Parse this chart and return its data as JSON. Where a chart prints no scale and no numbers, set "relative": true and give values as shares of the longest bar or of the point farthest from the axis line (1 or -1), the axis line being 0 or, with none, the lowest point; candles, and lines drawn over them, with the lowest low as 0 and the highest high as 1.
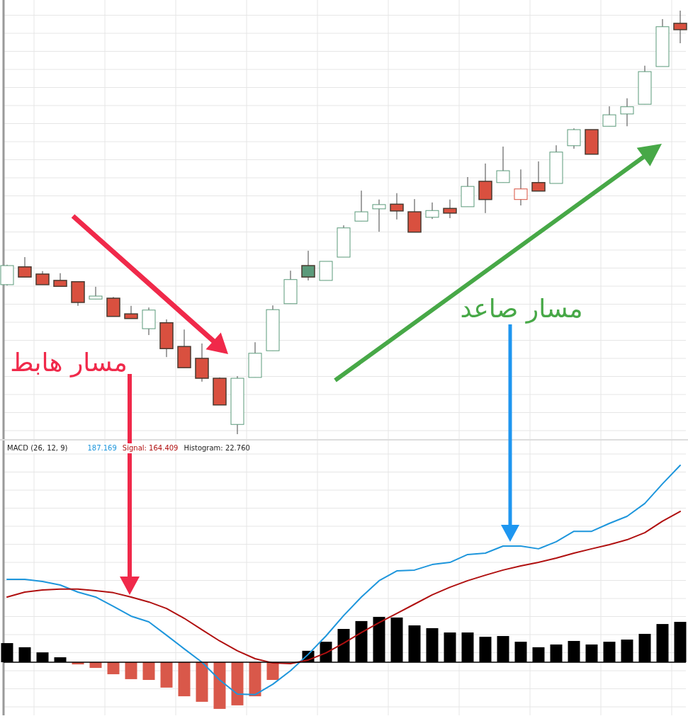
{
  "chart_data": [
    {
      "type": "candlestick",
      "relative": true,
      "grid": true,
      "categories": [
        null,
        null,
        null,
        null,
        null,
        null,
        null,
        null,
        null,
        null,
        null,
        null,
        null,
        null,
        null,
        null,
        null,
        null,
        null,
        null,
        null,
        null,
        null,
        null,
        null,
        null,
        null,
        null,
        null,
        null,
        null,
        null,
        null,
        null,
        null,
        null,
        null,
        null,
        null
      ],
      "ohlc": [
        [
          0.353,
          0.4,
          0.351,
          0.398
        ],
        [
          0.395,
          0.418,
          0.371,
          0.371
        ],
        [
          0.378,
          0.385,
          0.353,
          0.353
        ],
        [
          0.363,
          0.38,
          0.349,
          0.349
        ],
        [
          0.36,
          0.36,
          0.303,
          0.311
        ],
        [
          0.319,
          0.348,
          0.319,
          0.326
        ],
        [
          0.321,
          0.324,
          0.278,
          0.278
        ],
        [
          0.284,
          0.303,
          0.273,
          0.273
        ],
        [
          0.249,
          0.299,
          0.234,
          0.293
        ],
        [
          0.263,
          0.271,
          0.182,
          0.202
        ],
        [
          0.207,
          0.247,
          0.157,
          0.157
        ],
        [
          0.179,
          0.214,
          0.124,
          0.132
        ],
        [
          0.132,
          0.134,
          0.069,
          0.069
        ],
        [
          0.023,
          0.137,
          0,
          0.132
        ],
        [
          0.134,
          0.217,
          0.134,
          0.191
        ],
        [
          0.197,
          0.304,
          0.197,
          0.294
        ],
        [
          0.308,
          0.386,
          0.308,
          0.365
        ],
        [
          0.398,
          0.433,
          0.363,
          0.371
        ],
        [
          0.363,
          0.408,
          0.363,
          0.408
        ],
        [
          0.418,
          0.493,
          0.418,
          0.487
        ],
        [
          0.503,
          0.575,
          0.503,
          0.525
        ],
        [
          0.532,
          0.554,
          0.478,
          0.542
        ],
        [
          0.543,
          0.569,
          0.507,
          0.527
        ],
        [
          0.525,
          0.555,
          0.477,
          0.477
        ],
        [
          0.512,
          0.547,
          0.508,
          0.528
        ],
        [
          0.533,
          0.554,
          0.51,
          0.522
        ],
        [
          0.537,
          0.607,
          0.537,
          0.585
        ],
        [
          0.597,
          0.639,
          0.522,
          0.554
        ],
        [
          0.594,
          0.679,
          0.594,
          0.622
        ],
        [
          0.554,
          0.625,
          0.54,
          0.579
        ],
        [
          0.594,
          0.644,
          0.574,
          0.574
        ],
        [
          0.592,
          0.682,
          0.592,
          0.666
        ],
        [
          0.681,
          0.722,
          0.674,
          0.719
        ],
        [
          0.719,
          0.719,
          0.661,
          0.661
        ],
        [
          0.727,
          0.774,
          0.727,
          0.754
        ],
        [
          0.756,
          0.793,
          0.727,
          0.773
        ],
        [
          0.779,
          0.87,
          0.779,
          0.856
        ],
        [
          0.868,
          0.98,
          0.868,
          0.962
        ],
        [
          0.97,
          1,
          0.923,
          0.955
        ]
      ],
      "colors": [
        "#5b9a7a",
        "#d9503f",
        "#d9503f",
        "#d9503f",
        "#d9503f",
        "#5b9a7a",
        "#d9503f",
        "#d9503f",
        "#5b9a7a",
        "#d9503f",
        "#d9503f",
        "#d9503f",
        "#d9503f",
        "#5b9a7a",
        "#5b9a7a",
        "#5b9a7a",
        "#5b9a7a",
        "#5b9a7a",
        "#5b9a7a",
        "#5b9a7a",
        "#5b9a7a",
        "#5b9a7a",
        "#d9503f",
        "#d9503f",
        "#5b9a7a",
        "#d9503f",
        "#5b9a7a",
        "#d9503f",
        "#5b9a7a",
        "#d9503f",
        "#d9503f",
        "#5b9a7a",
        "#5b9a7a",
        "#d9503f",
        "#5b9a7a",
        "#5b9a7a",
        "#5b9a7a",
        "#5b9a7a",
        "#d9503f"
      ],
      "annotations": [
        "مسار هابط",
        "مسار صاعد"
      ]
    },
    {
      "type": "bar",
      "relative": true,
      "grid": true,
      "categories": [
        null,
        null,
        null,
        null,
        null,
        null,
        null,
        null,
        null,
        null,
        null,
        null,
        null,
        null,
        null,
        null,
        null,
        null,
        null,
        null,
        null,
        null,
        null,
        null,
        null,
        null,
        null,
        null,
        null,
        null,
        null,
        null,
        null,
        null,
        null,
        null,
        null,
        null,
        null
      ],
      "series": [
        {
          "type": "bar",
          "colors": [
            "#000000",
            "#000000",
            "#000000",
            "#000000",
            "#d9584a",
            "#d9584a",
            "#d9584a",
            "#d9584a",
            "#d9584a",
            "#d9584a",
            "#d9584a",
            "#d9584a",
            "#d9584a",
            "#d9584a",
            "#d9584a",
            "#d9584a",
            "#000000",
            "#000000",
            "#000000",
            "#000000",
            "#000000",
            "#000000",
            "#000000",
            "#000000",
            "#000000",
            "#000000",
            "#000000",
            "#000000",
            "#000000",
            "#000000",
            "#000000",
            "#000000",
            "#000000",
            "#000000",
            "#000000",
            "#000000",
            "#000000",
            "#000000",
            "#000000"
          ],
          "values": [
            0.097,
            0.076,
            0.05,
            0.025,
            -0.011,
            -0.029,
            -0.061,
            -0.086,
            -0.09,
            -0.129,
            -0.173,
            -0.201,
            -0.237,
            -0.219,
            -0.173,
            -0.09,
            0,
            0.058,
            0.104,
            0.169,
            0.209,
            0.23,
            0.227,
            0.187,
            0.173,
            0.151,
            0.151,
            0.129,
            0.133,
            0.104,
            0.076,
            0.09,
            0.108,
            0.09,
            0.104,
            0.115,
            0.144,
            0.194,
            0.205
          ]
        },
        {
          "type": "line",
          "color": "#1e96dc",
          "values": [
            0.421,
            0.421,
            0.41,
            0.392,
            0.356,
            0.331,
            0.284,
            0.234,
            0.205,
            0.137,
            0.068,
            0,
            -0.09,
            -0.162,
            -0.165,
            -0.112,
            -0.043,
            0.04,
            0.133,
            0.237,
            0.331,
            0.414,
            0.464,
            0.468,
            0.496,
            0.507,
            0.547,
            0.554,
            0.59,
            0.59,
            0.576,
            0.612,
            0.665,
            0.665,
            0.705,
            0.741,
            0.806,
            0.906,
            1
          ]
        },
        {
          "type": "line",
          "color": "#b01010",
          "values": [
            0.331,
            0.356,
            0.367,
            0.371,
            0.371,
            0.363,
            0.353,
            0.331,
            0.306,
            0.273,
            0.223,
            0.165,
            0.108,
            0.058,
            0.018,
            -0.004,
            -0.007,
            0.011,
            0.047,
            0.097,
            0.151,
            0.201,
            0.248,
            0.295,
            0.342,
            0.381,
            0.414,
            0.442,
            0.468,
            0.489,
            0.507,
            0.529,
            0.554,
            0.576,
            0.597,
            0.622,
            0.658,
            0.716,
            0.766
          ]
        }
      ],
      "annotations": [
        "MACD  (26, 12, 9)",
        "187.169",
        "Signal:  164.409",
        "Histogram:  22.760"
      ]
    }
  ]
}
